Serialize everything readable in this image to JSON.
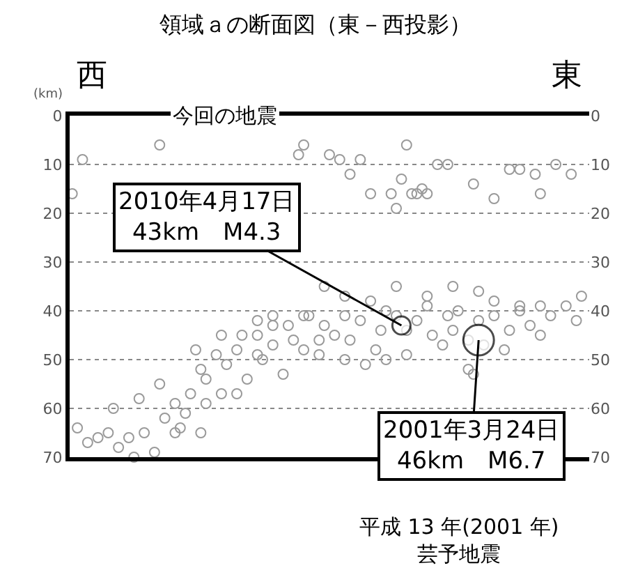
{
  "chart_data": {
    "type": "scatter",
    "title": "領域ａの断面図（東－西投影）",
    "ylabel": "(km)",
    "categories": [
      null,
      null,
      null,
      null,
      null,
      null,
      null,
      null,
      null,
      null,
      null,
      null,
      null,
      null,
      null,
      null,
      null,
      null,
      null,
      null,
      null,
      null,
      null,
      null,
      null,
      null,
      null,
      null,
      null,
      null,
      null,
      null,
      null,
      null,
      null,
      null,
      null,
      null,
      null,
      null,
      null,
      null,
      null,
      null,
      null,
      null,
      null,
      null,
      null,
      null,
      null,
      null,
      null,
      null,
      null,
      null,
      null,
      null,
      null,
      null,
      null,
      null,
      null,
      null,
      null,
      null,
      null,
      null,
      null,
      null,
      null,
      null,
      null,
      null,
      null,
      null,
      null,
      null,
      null,
      null,
      null,
      null,
      null,
      null,
      null,
      null,
      null,
      null,
      null,
      null,
      null,
      null,
      null,
      null,
      null,
      null,
      null,
      null,
      null,
      null,
      null
    ],
    "series": [
      {
        "color": "#9a9a9a",
        "marker": "circle",
        "values": [
          null,
          64,
          null,
          67,
          null,
          66,
          null,
          65,
          60,
          68,
          null,
          66,
          70,
          58,
          65,
          null,
          69,
          55,
          62,
          null,
          59,
          64,
          61,
          57,
          48,
          65,
          54,
          null,
          49,
          57,
          51,
          null,
          48,
          45,
          54,
          null,
          45,
          50,
          null,
          47,
          null,
          53,
          43,
          46,
          null,
          48,
          41,
          null,
          46,
          43,
          null,
          45,
          null,
          41,
          46,
          null,
          42,
          51,
          38,
          48,
          44,
          50,
          null,
          41,
          null,
          44,
          null,
          42,
          null,
          37,
          45,
          null,
          47,
          41,
          44,
          40,
          null,
          46,
          53,
          42,
          47,
          null,
          41,
          null,
          48,
          44,
          null,
          40,
          null,
          43,
          null,
          39,
          null,
          41,
          null,
          null,
          39,
          null,
          42,
          37,
          null
        ]
      },
      {
        "color": "#9a9a9a",
        "marker": "circle",
        "values": [
          null,
          null,
          null,
          null,
          null,
          null,
          null,
          null,
          null,
          null,
          null,
          null,
          null,
          null,
          null,
          null,
          null,
          null,
          null,
          null,
          65,
          null,
          null,
          null,
          null,
          52,
          59,
          null,
          null,
          45,
          null,
          null,
          57,
          null,
          null,
          null,
          42,
          null,
          null,
          41,
          null,
          null,
          null,
          null,
          null,
          41,
          null,
          null,
          49,
          35,
          null,
          null,
          null,
          37,
          null,
          null,
          null,
          null,
          null,
          null,
          null,
          40,
          null,
          35,
          null,
          49,
          16,
          null,
          15,
          39,
          null,
          null,
          null,
          null,
          35,
          null,
          null,
          52,
          null,
          36,
          null,
          null,
          38,
          null,
          null,
          null,
          null,
          39,
          null,
          null,
          null,
          45,
          null,
          null,
          null,
          null,
          null,
          null,
          null,
          null,
          null
        ]
      },
      {
        "color": "#9a9a9a",
        "marker": "circle",
        "values": [
          16,
          null,
          9,
          null,
          null,
          null,
          null,
          null,
          null,
          null,
          null,
          null,
          null,
          null,
          null,
          null,
          null,
          6,
          null,
          null,
          null,
          null,
          null,
          null,
          null,
          null,
          null,
          null,
          null,
          null,
          null,
          null,
          null,
          null,
          null,
          null,
          49,
          null,
          null,
          43,
          null,
          null,
          null,
          null,
          8,
          6,
          null,
          null,
          null,
          null,
          8,
          null,
          9,
          50,
          12,
          null,
          9,
          null,
          16,
          null,
          null,
          null,
          16,
          19,
          13,
          6,
          null,
          16,
          null,
          16,
          null,
          10,
          null,
          10,
          null,
          null,
          null,
          null,
          14,
          null,
          null,
          null,
          17,
          null,
          null,
          11,
          null,
          11,
          null,
          null,
          12,
          16,
          null,
          null,
          10,
          null,
          null,
          12,
          null,
          null,
          null
        ]
      },
      {
        "type": "bubble",
        "color": "#ffffff",
        "values": [
          null,
          null,
          null,
          null,
          null,
          null,
          null,
          null,
          null,
          null,
          null,
          null,
          null,
          null,
          null,
          null,
          null,
          null,
          null,
          null,
          null,
          null,
          null,
          null,
          null,
          null,
          null,
          null,
          null,
          null,
          null,
          null,
          null,
          null,
          null,
          null,
          null,
          null,
          null,
          null,
          null,
          null,
          null,
          null,
          null,
          null,
          null,
          null,
          null,
          null,
          null,
          null,
          null,
          null,
          null,
          null,
          null,
          null,
          null,
          null,
          null,
          null,
          null,
          null,
          43,
          null,
          null,
          null,
          null,
          null,
          null,
          null,
          null,
          null,
          null,
          null,
          null,
          null,
          null,
          46,
          null,
          null,
          null,
          null,
          null,
          null,
          null,
          null,
          null,
          null,
          null,
          null,
          null,
          null,
          null,
          null,
          null,
          null,
          null,
          null,
          null
        ],
        "sizes": [
          null,
          null,
          null,
          null,
          null,
          null,
          null,
          null,
          null,
          null,
          null,
          null,
          null,
          null,
          null,
          null,
          null,
          null,
          null,
          null,
          null,
          null,
          null,
          null,
          null,
          null,
          null,
          null,
          null,
          null,
          null,
          null,
          null,
          null,
          null,
          null,
          null,
          null,
          null,
          null,
          null,
          null,
          null,
          null,
          null,
          null,
          null,
          null,
          null,
          null,
          null,
          null,
          null,
          null,
          null,
          null,
          null,
          null,
          null,
          null,
          null,
          null,
          null,
          null,
          0.35,
          null,
          null,
          null,
          null,
          null,
          null,
          null,
          null,
          null,
          null,
          null,
          null,
          null,
          null,
          1,
          null,
          null,
          null,
          null,
          null,
          null,
          null,
          null,
          null,
          null,
          null,
          null,
          null,
          null,
          null,
          null,
          null,
          null,
          null,
          null,
          null
        ]
      }
    ],
    "ylim": [
      70,
      0
    ],
    "yticks": [
      0,
      10,
      20,
      30,
      40,
      50,
      60,
      70
    ],
    "y2lim": [
      70,
      0
    ],
    "y2ticks": [
      0,
      10,
      20,
      30,
      40,
      50,
      60,
      70
    ],
    "tick_labels": "y",
    "grid": "y",
    "annotations": [
      "西",
      "東",
      "今回の地震",
      "2010年4月17日\n43km　M4.3",
      "2001年3月24日\n46km　M6.7",
      "平成 13 年(2001 年)\n芸予地震"
    ]
  }
}
